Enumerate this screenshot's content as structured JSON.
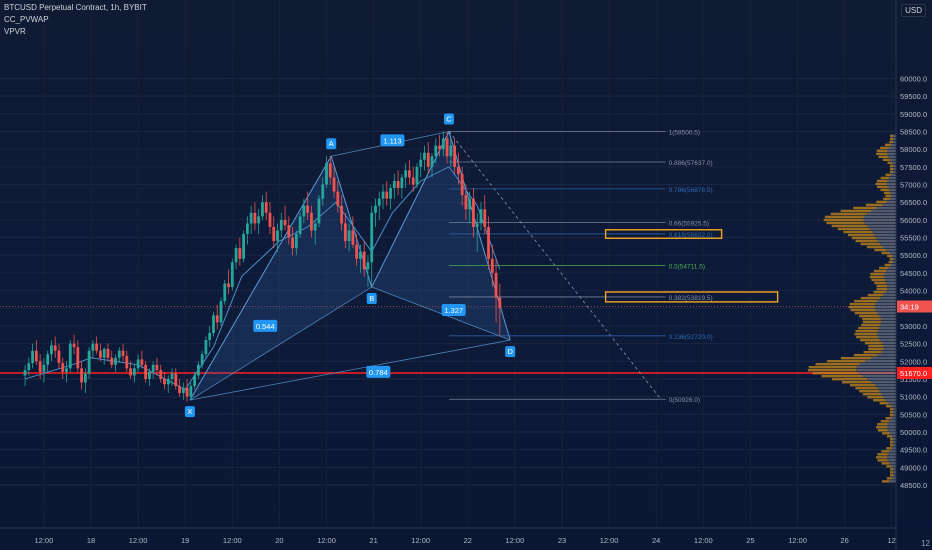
{
  "header": {
    "symbol_line": "BTCUSD Perpetual Contract, 1h, BYBIT",
    "indicator_1": "CC_PVWAP",
    "indicator_2": "VPVR",
    "currency": "USD",
    "corner_label": "12"
  },
  "colors": {
    "up": "#26a69a",
    "down": "#ef5350",
    "pattern_fill": "#3b6fb8",
    "pattern_line": "#5b9bd5",
    "label_bg": "#2196f3",
    "vwap": "#4a90c8",
    "support": "#ff1f1f",
    "box": "#f5a623",
    "vp_orange": "#c8891a",
    "vp_grey": "#8a8f99"
  },
  "chart_data": {
    "type": "candlestick",
    "ylim": [
      48500,
      60500
    ],
    "y_ticks": [
      "60000.0",
      "59500.0",
      "59000.0",
      "58500.0",
      "58000.0",
      "57500.0",
      "57000.0",
      "56500.0",
      "56000.0",
      "55500.0",
      "55000.0",
      "54500.0",
      "54000.0",
      "53500.0",
      "53000.0",
      "52500.0",
      "52000.0",
      "51500.0",
      "51000.0",
      "50500.0",
      "50000.0",
      "49500.0",
      "49000.0",
      "48500.0"
    ],
    "x_ticks": [
      "12:00",
      "18",
      "12:00",
      "19",
      "12:00",
      "20",
      "12:00",
      "21",
      "12:00",
      "22",
      "12:00",
      "23",
      "12:00",
      "24",
      "12:00",
      "25",
      "12:00",
      "26",
      "12"
    ],
    "price_tags": [
      {
        "label": "34:19",
        "price": 53550,
        "color": "#ef5350"
      },
      {
        "label": "51670.0",
        "price": 51670,
        "color": "#ff1f1f"
      }
    ],
    "support_level": 51670,
    "harmonic_points": [
      {
        "name": "X",
        "day": 19.05,
        "price": 50900
      },
      {
        "name": "A",
        "day": 20.55,
        "price": 57800
      },
      {
        "name": "B",
        "day": 20.98,
        "price": 54100
      },
      {
        "name": "C",
        "day": 21.8,
        "price": 58500
      },
      {
        "name": "D",
        "day": 22.45,
        "price": 52600
      }
    ],
    "ratio_labels": [
      {
        "text": "1.113",
        "day": 21.2,
        "price": 58250
      },
      {
        "text": "0.544",
        "day": 19.85,
        "price": 53000
      },
      {
        "text": "1.327",
        "day": 21.85,
        "price": 53450
      },
      {
        "text": "0.784",
        "day": 21.05,
        "price": 51700
      }
    ],
    "fib_levels": [
      {
        "label": "1(58500.5)",
        "price": 58500.5
      },
      {
        "label": "0.886(57637.0)",
        "price": 57637.0
      },
      {
        "label": "0.786(56876.5)",
        "price": 56876.5
      },
      {
        "label": "0.66(55925.5)",
        "price": 55925.5
      },
      {
        "label": "0.618(55602.0)",
        "price": 55602.0
      },
      {
        "label": "0.5(54711.5)",
        "price": 54711.5
      },
      {
        "label": "0.382(53819.5)",
        "price": 53819.5
      },
      {
        "label": "0.236(52720.0)",
        "price": 52720.0
      },
      {
        "label": "0(50926.0)",
        "price": 50926.0
      }
    ],
    "boxes": [
      {
        "level": "0.618",
        "price_top": 55720,
        "price_bottom": 55480
      },
      {
        "level": "0.382",
        "price_top": 53960,
        "price_bottom": 53680
      }
    ],
    "candles": [
      [
        17.3,
        51600,
        51900,
        51300,
        51750
      ],
      [
        17.34,
        51750,
        52100,
        51600,
        51950
      ],
      [
        17.38,
        51950,
        52500,
        51800,
        52300
      ],
      [
        17.42,
        52300,
        52600,
        51900,
        52000
      ],
      [
        17.46,
        52000,
        52200,
        51500,
        51700
      ],
      [
        17.5,
        51700,
        52100,
        51400,
        51900
      ],
      [
        17.54,
        51900,
        52300,
        51700,
        52200
      ],
      [
        17.58,
        52200,
        52600,
        52000,
        52450
      ],
      [
        17.62,
        52450,
        52700,
        52100,
        52300
      ],
      [
        17.66,
        52300,
        52500,
        51800,
        51950
      ],
      [
        17.7,
        51950,
        52100,
        51500,
        51700
      ],
      [
        17.74,
        51700,
        52000,
        51400,
        51800
      ],
      [
        17.78,
        51800,
        52600,
        51700,
        52500
      ],
      [
        17.82,
        52500,
        52750,
        52200,
        52400
      ],
      [
        17.86,
        52400,
        52600,
        51700,
        51800
      ],
      [
        17.9,
        51800,
        52000,
        51200,
        51400
      ],
      [
        17.94,
        51400,
        51800,
        51100,
        51650
      ],
      [
        17.98,
        51650,
        52400,
        51500,
        52300
      ],
      [
        18.02,
        52300,
        52600,
        52100,
        52500
      ],
      [
        18.06,
        52500,
        52700,
        52200,
        52300
      ],
      [
        18.1,
        52300,
        52500,
        52000,
        52100
      ],
      [
        18.14,
        52100,
        52400,
        51900,
        52350
      ],
      [
        18.18,
        52350,
        52500,
        52000,
        52100
      ],
      [
        18.22,
        52100,
        52300,
        51800,
        51900
      ],
      [
        18.26,
        51900,
        52200,
        51700,
        52100
      ],
      [
        18.3,
        52100,
        52400,
        51950,
        52300
      ],
      [
        18.34,
        52300,
        52500,
        52000,
        52150
      ],
      [
        18.38,
        52150,
        52300,
        51700,
        51800
      ],
      [
        18.42,
        51800,
        52000,
        51500,
        51600
      ],
      [
        18.46,
        51600,
        51900,
        51400,
        51800
      ],
      [
        18.5,
        51800,
        52200,
        51700,
        52050
      ],
      [
        18.54,
        52050,
        52300,
        51800,
        51900
      ],
      [
        18.58,
        51900,
        52000,
        51400,
        51500
      ],
      [
        18.62,
        51500,
        51800,
        51300,
        51700
      ],
      [
        18.66,
        51700,
        52000,
        51500,
        51900
      ],
      [
        18.7,
        51900,
        52100,
        51600,
        51750
      ],
      [
        18.74,
        51750,
        51900,
        51400,
        51500
      ],
      [
        18.78,
        51500,
        51700,
        51200,
        51350
      ],
      [
        18.82,
        51350,
        51600,
        51100,
        51500
      ],
      [
        18.86,
        51500,
        51800,
        51300,
        51650
      ],
      [
        18.9,
        51650,
        51800,
        51200,
        51300
      ],
      [
        18.94,
        51300,
        51500,
        51000,
        51100
      ],
      [
        18.98,
        51100,
        51400,
        50900,
        51250
      ],
      [
        19.02,
        51250,
        51500,
        50850,
        51000
      ],
      [
        19.06,
        51000,
        51400,
        50900,
        51300
      ],
      [
        19.1,
        51300,
        51700,
        51200,
        51600
      ],
      [
        19.14,
        51600,
        52000,
        51500,
        51900
      ],
      [
        19.18,
        51900,
        52300,
        51800,
        52200
      ],
      [
        19.22,
        52200,
        52700,
        52100,
        52600
      ],
      [
        19.26,
        52600,
        53000,
        52400,
        52800
      ],
      [
        19.3,
        52800,
        53400,
        52700,
        53300
      ],
      [
        19.34,
        53300,
        53600,
        52900,
        53100
      ],
      [
        19.38,
        53100,
        53800,
        53000,
        53700
      ],
      [
        19.42,
        53700,
        54300,
        53600,
        54200
      ],
      [
        19.46,
        54200,
        54600,
        53900,
        54100
      ],
      [
        19.5,
        54100,
        54900,
        54000,
        54800
      ],
      [
        19.54,
        54800,
        55300,
        54600,
        55200
      ],
      [
        19.58,
        55200,
        55500,
        54700,
        54900
      ],
      [
        19.62,
        54900,
        55700,
        54800,
        55600
      ],
      [
        19.66,
        55600,
        56100,
        55300,
        55900
      ],
      [
        19.7,
        55900,
        56400,
        55600,
        56200
      ],
      [
        19.74,
        56200,
        56500,
        55700,
        55900
      ],
      [
        19.78,
        55900,
        56300,
        55600,
        56100
      ],
      [
        19.82,
        56100,
        56700,
        56000,
        56500
      ],
      [
        19.86,
        56500,
        56800,
        56000,
        56200
      ],
      [
        19.9,
        56200,
        56500,
        55600,
        55800
      ],
      [
        19.94,
        55800,
        56100,
        55200,
        55400
      ],
      [
        19.98,
        55400,
        55900,
        55100,
        55700
      ],
      [
        20.02,
        55700,
        56200,
        55500,
        56000
      ],
      [
        20.06,
        56000,
        56400,
        55700,
        55850
      ],
      [
        20.1,
        55850,
        56100,
        55300,
        55500
      ],
      [
        20.14,
        55500,
        55800,
        55000,
        55200
      ],
      [
        20.18,
        55200,
        55700,
        55000,
        55600
      ],
      [
        20.22,
        55600,
        56200,
        55500,
        56100
      ],
      [
        20.26,
        56100,
        56600,
        55900,
        56400
      ],
      [
        20.3,
        56400,
        56800,
        56000,
        56200
      ],
      [
        20.34,
        56200,
        56400,
        55500,
        55700
      ],
      [
        20.38,
        55700,
        56000,
        55300,
        55900
      ],
      [
        20.42,
        55900,
        56700,
        55800,
        56600
      ],
      [
        20.46,
        56600,
        57200,
        56400,
        57000
      ],
      [
        20.5,
        57000,
        57800,
        56900,
        57600
      ],
      [
        20.54,
        57600,
        57800,
        57000,
        57200
      ],
      [
        20.58,
        57200,
        57500,
        56600,
        56800
      ],
      [
        20.62,
        56800,
        57100,
        56200,
        56400
      ],
      [
        20.66,
        56400,
        56700,
        55700,
        55900
      ],
      [
        20.7,
        55900,
        56200,
        55200,
        55400
      ],
      [
        20.74,
        55400,
        55900,
        55100,
        55700
      ],
      [
        20.78,
        55700,
        56100,
        55200,
        55300
      ],
      [
        20.82,
        55300,
        55600,
        54700,
        54900
      ],
      [
        20.86,
        54900,
        55300,
        54500,
        55100
      ],
      [
        20.9,
        55100,
        55400,
        54400,
        54600
      ],
      [
        20.94,
        54600,
        55000,
        54100,
        54800
      ],
      [
        20.98,
        54800,
        56400,
        54100,
        56200
      ],
      [
        21.02,
        56200,
        56600,
        55800,
        56400
      ],
      [
        21.06,
        56400,
        56800,
        56000,
        56600
      ],
      [
        21.1,
        56600,
        57000,
        56300,
        56800
      ],
      [
        21.14,
        56800,
        57100,
        56400,
        56600
      ],
      [
        21.18,
        56600,
        57000,
        56300,
        56900
      ],
      [
        21.22,
        56900,
        57300,
        56600,
        57100
      ],
      [
        21.26,
        57100,
        57400,
        56700,
        56900
      ],
      [
        21.3,
        56900,
        57300,
        56600,
        57200
      ],
      [
        21.34,
        57200,
        57600,
        56900,
        57400
      ],
      [
        21.38,
        57400,
        57700,
        57000,
        57200
      ],
      [
        21.42,
        57200,
        57500,
        56800,
        57000
      ],
      [
        21.46,
        57000,
        57600,
        56900,
        57500
      ],
      [
        21.5,
        57500,
        57900,
        57200,
        57700
      ],
      [
        21.54,
        57700,
        58100,
        57400,
        57900
      ],
      [
        21.58,
        57900,
        58200,
        57300,
        57500
      ],
      [
        21.62,
        57500,
        57900,
        57200,
        57800
      ],
      [
        21.66,
        57800,
        58300,
        57600,
        58100
      ],
      [
        21.7,
        58100,
        58400,
        57800,
        58000
      ],
      [
        21.74,
        58000,
        58500,
        57800,
        58300
      ],
      [
        21.78,
        58300,
        58500,
        57600,
        57800
      ],
      [
        21.82,
        57800,
        58300,
        57500,
        58100
      ],
      [
        21.86,
        58100,
        58300,
        57300,
        57500
      ],
      [
        21.9,
        57500,
        57900,
        57000,
        57300
      ],
      [
        21.94,
        57300,
        57500,
        56400,
        56700
      ],
      [
        21.98,
        56700,
        57000,
        56000,
        56300
      ],
      [
        22.02,
        56300,
        56800,
        55900,
        56600
      ],
      [
        22.06,
        56600,
        56900,
        55500,
        55800
      ],
      [
        22.1,
        55800,
        56200,
        55100,
        55900
      ],
      [
        22.14,
        55900,
        56500,
        55700,
        56300
      ],
      [
        22.18,
        56300,
        56700,
        55600,
        55800
      ],
      [
        22.22,
        55800,
        56100,
        54600,
        54900
      ],
      [
        22.26,
        54900,
        55300,
        54100,
        54500
      ],
      [
        22.3,
        54500,
        54900,
        53100,
        53800
      ],
      [
        22.34,
        53800,
        54200,
        52700,
        53500
      ]
    ],
    "vwap": [
      [
        17.3,
        51500
      ],
      [
        17.8,
        51900
      ],
      [
        18.0,
        52100
      ],
      [
        18.5,
        51900
      ],
      [
        19.0,
        51200
      ],
      [
        19.3,
        52400
      ],
      [
        19.6,
        54400
      ],
      [
        20.0,
        55400
      ],
      [
        20.3,
        55800
      ],
      [
        20.6,
        56500
      ],
      [
        20.98,
        55100
      ],
      [
        21.2,
        56200
      ],
      [
        21.5,
        57100
      ],
      [
        21.8,
        57500
      ],
      [
        22.1,
        56400
      ],
      [
        22.34,
        54600
      ]
    ],
    "volume_profile_note": "VPVR histogram on right side"
  }
}
